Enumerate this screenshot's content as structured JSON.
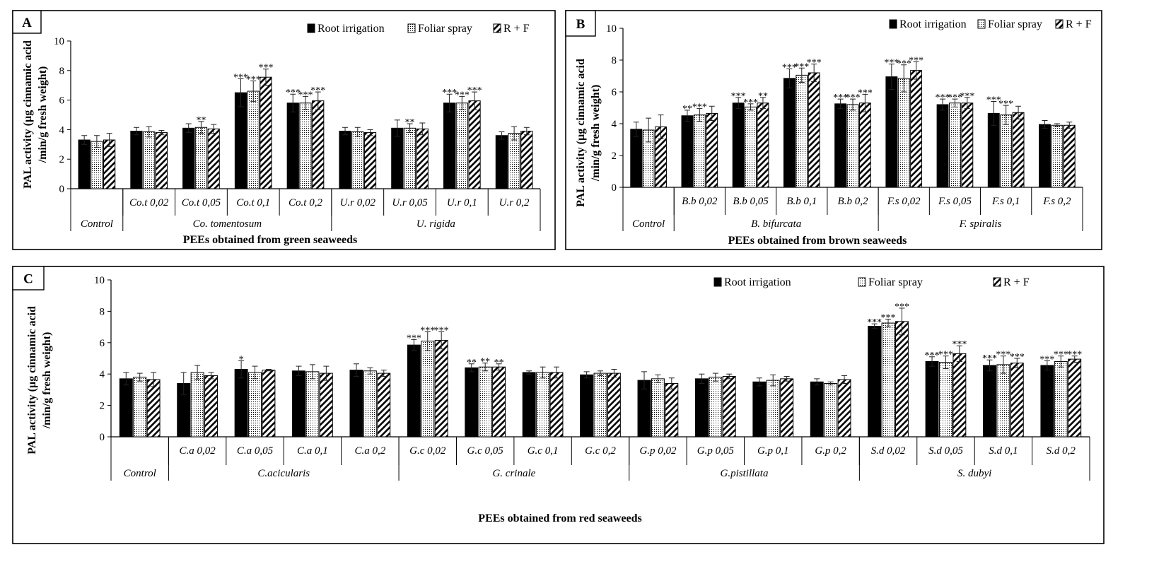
{
  "series_names": [
    "Root irrigation",
    "Foliar spray",
    "R + F"
  ],
  "y_axis_label": [
    "PAL activity (µg cinnamic acid",
    "/min/g fresh weight)"
  ],
  "chart_data": [
    {
      "panel": "A",
      "type": "bar",
      "title": "PEEs obtained from green seaweeds",
      "ylim": [
        0,
        10
      ],
      "yticks": [
        0,
        2,
        4,
        6,
        8,
        10
      ],
      "categories": [
        "Control",
        "Co.t 0,02",
        "Co.t 0,05",
        "Co.t 0,1",
        "Co.t 0,2",
        "U.r 0,02",
        "U.r 0,05",
        "U.r 0,1",
        "U.r 0,2"
      ],
      "groups": [
        {
          "label": "Co. tomentosum",
          "from": 1,
          "to": 4
        },
        {
          "label": "U. rigida",
          "from": 5,
          "to": 8
        }
      ],
      "series": [
        {
          "name": "Root irrigation",
          "values": [
            3.3,
            3.9,
            4.1,
            6.5,
            5.8,
            3.9,
            4.1,
            5.8,
            3.6
          ],
          "errors": [
            0.3,
            0.25,
            0.3,
            0.95,
            0.6,
            0.25,
            0.55,
            0.6,
            0.25
          ],
          "sig": [
            "",
            "",
            "",
            "***",
            "***",
            "",
            "",
            "***",
            ""
          ]
        },
        {
          "name": "Foliar spray",
          "values": [
            3.2,
            3.85,
            4.15,
            6.6,
            5.8,
            3.85,
            4.1,
            5.8,
            3.75
          ],
          "errors": [
            0.4,
            0.35,
            0.4,
            0.7,
            0.45,
            0.3,
            0.3,
            0.45,
            0.45
          ],
          "sig": [
            "",
            "",
            "**",
            "***",
            "***",
            "",
            "**",
            "***",
            ""
          ]
        },
        {
          "name": "R + F",
          "values": [
            3.3,
            3.8,
            4.05,
            7.55,
            5.95,
            3.8,
            4.05,
            5.95,
            3.9
          ],
          "errors": [
            0.45,
            0.15,
            0.3,
            0.55,
            0.6,
            0.2,
            0.4,
            0.6,
            0.25
          ],
          "sig": [
            "",
            "",
            "",
            "***",
            "***",
            "",
            "",
            "***",
            ""
          ]
        }
      ]
    },
    {
      "panel": "B",
      "type": "bar",
      "title": "PEEs obtained from brown seaweeds",
      "ylim": [
        0,
        10
      ],
      "yticks": [
        0,
        2,
        4,
        6,
        8,
        10
      ],
      "categories": [
        "Control",
        "B.b 0,02",
        "B.b 0,05",
        "B.b 0,1",
        "B.b 0,2",
        "F.s 0,02",
        "F.s 0,05",
        "F.s 0,1",
        "F.s 0,2"
      ],
      "groups": [
        {
          "label": "B. bifurcata",
          "from": 1,
          "to": 4
        },
        {
          "label": "F. spiralis",
          "from": 5,
          "to": 8
        }
      ],
      "series": [
        {
          "name": "Root irrigation",
          "values": [
            3.65,
            4.5,
            5.3,
            6.85,
            5.25,
            6.95,
            5.2,
            4.65,
            3.95
          ],
          "errors": [
            0.45,
            0.35,
            0.35,
            0.6,
            0.3,
            0.8,
            0.35,
            0.75,
            0.25
          ],
          "sig": [
            "",
            "**",
            "***",
            "***",
            "***",
            "***",
            "***",
            "***",
            ""
          ]
        },
        {
          "name": "Foliar spray",
          "values": [
            3.6,
            4.55,
            5.05,
            7.05,
            5.2,
            6.85,
            5.3,
            4.55,
            3.9
          ],
          "errors": [
            0.75,
            0.4,
            0.2,
            0.45,
            0.35,
            0.85,
            0.25,
            0.6,
            0.1
          ],
          "sig": [
            "",
            "***",
            "***",
            "***",
            "***",
            "***",
            "***",
            "***",
            ""
          ]
        },
        {
          "name": "R + F",
          "values": [
            3.8,
            4.65,
            5.3,
            7.2,
            5.3,
            7.35,
            5.3,
            4.7,
            3.9
          ],
          "errors": [
            0.75,
            0.45,
            0.35,
            0.55,
            0.55,
            0.55,
            0.35,
            0.4,
            0.2
          ],
          "sig": [
            "",
            "",
            "**",
            "***",
            "***",
            "***",
            "***",
            "",
            ""
          ]
        }
      ]
    },
    {
      "panel": "C",
      "type": "bar",
      "title": "PEEs obtained from red seaweeds",
      "ylim": [
        0,
        10
      ],
      "yticks": [
        0,
        2,
        4,
        6,
        8,
        10
      ],
      "categories": [
        "Control",
        "C.a 0,02",
        "C.a 0,05",
        "C.a 0,1",
        "C.a 0,2",
        "G.c 0,02",
        "G.c 0,05",
        "G.c 0,1",
        "G.c 0,2",
        "G.p 0,02",
        "G.p 0,05",
        "G.p 0,1",
        "G.p 0,2",
        "S.d 0,02",
        "S.d 0,05",
        "S.d 0,1",
        "S.d 0,2"
      ],
      "groups": [
        {
          "label": "C.acicularis",
          "from": 1,
          "to": 4
        },
        {
          "label": "G. crinale",
          "from": 5,
          "to": 8
        },
        {
          "label": "G.pistillata",
          "from": 9,
          "to": 12
        },
        {
          "label": "S. dubyi",
          "from": 13,
          "to": 16
        }
      ],
      "series": [
        {
          "name": "Root irrigation",
          "values": [
            3.7,
            3.4,
            4.3,
            4.2,
            4.25,
            5.85,
            4.4,
            4.1,
            3.95,
            3.6,
            3.7,
            3.5,
            3.5,
            7.05,
            4.8,
            4.55,
            4.55
          ],
          "errors": [
            0.4,
            0.7,
            0.55,
            0.3,
            0.4,
            0.35,
            0.25,
            0.1,
            0.2,
            0.55,
            0.3,
            0.25,
            0.2,
            0.15,
            0.3,
            0.35,
            0.3
          ],
          "sig": [
            "",
            "",
            "*",
            "",
            "",
            "***",
            "**",
            "",
            "",
            "",
            "",
            "",
            "",
            "***",
            "***",
            "***",
            "***"
          ]
        },
        {
          "name": "Foliar spray",
          "values": [
            3.8,
            4.1,
            4.1,
            4.15,
            4.2,
            6.1,
            4.45,
            4.1,
            4.05,
            3.7,
            3.8,
            3.6,
            3.4,
            7.25,
            4.75,
            4.6,
            4.8
          ],
          "errors": [
            0.25,
            0.45,
            0.4,
            0.45,
            0.2,
            0.6,
            0.25,
            0.35,
            0.15,
            0.25,
            0.25,
            0.35,
            0.1,
            0.25,
            0.4,
            0.55,
            0.35
          ],
          "sig": [
            "",
            "",
            "",
            "",
            "",
            "***",
            "**",
            "",
            "",
            "",
            "",
            "",
            "",
            "***",
            "***",
            "***",
            "***"
          ]
        },
        {
          "name": "R + F",
          "values": [
            3.65,
            3.9,
            4.25,
            4.05,
            4.05,
            6.15,
            4.45,
            4.1,
            4.05,
            3.4,
            3.85,
            3.7,
            3.65,
            7.35,
            5.3,
            4.7,
            4.95
          ],
          "errors": [
            0.45,
            0.2,
            0.05,
            0.45,
            0.2,
            0.55,
            0.2,
            0.35,
            0.25,
            0.35,
            0.15,
            0.15,
            0.25,
            0.85,
            0.5,
            0.3,
            0.2
          ],
          "sig": [
            "",
            "",
            "",
            "",
            "",
            "***",
            "**",
            "",
            "",
            "",
            "",
            "",
            "",
            "***",
            "***",
            "***",
            "***"
          ]
        }
      ]
    }
  ]
}
